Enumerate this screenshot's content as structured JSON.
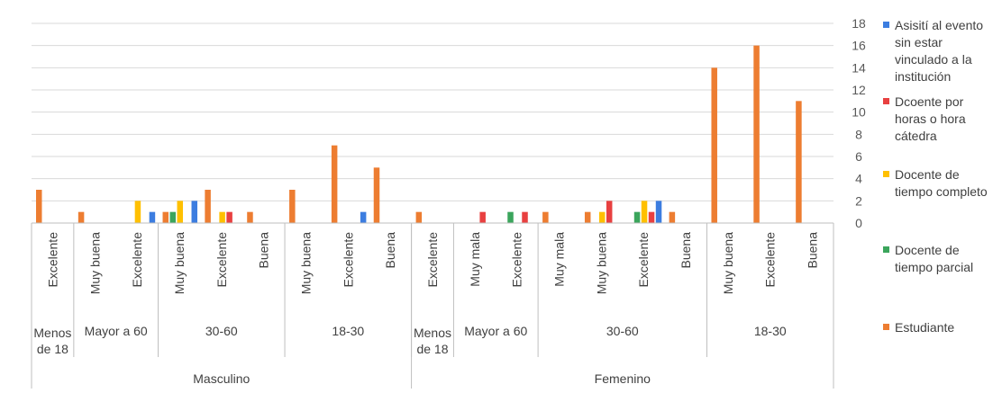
{
  "chart_data": {
    "type": "bar",
    "ylim": [
      0,
      18
    ],
    "y_ticks": [
      "0",
      "2",
      "4",
      "6",
      "8",
      "10",
      "12",
      "14",
      "16",
      "18"
    ],
    "y_axis_side": "right",
    "grid": true,
    "legend_position": "right",
    "categories": [
      "Excelente",
      "Muy buena",
      "Excelente",
      "Muy buena",
      "Excelente",
      "Buena",
      "Muy buena",
      "Excelente",
      "Buena",
      "Excelente",
      "Muy mala",
      "Excelente",
      "Muy mala",
      "Muy buena",
      "Excelente",
      "Buena",
      "Muy buena",
      "Excelente",
      "Buena"
    ],
    "age_groups": [
      {
        "label_lines": [
          "Menos",
          "de 18"
        ],
        "span": 1
      },
      {
        "label_lines": [
          "Mayor a 60"
        ],
        "span": 2
      },
      {
        "label_lines": [
          "30-60"
        ],
        "span": 3
      },
      {
        "label_lines": [
          "18-30"
        ],
        "span": 3
      },
      {
        "label_lines": [
          "Menos",
          "de 18"
        ],
        "span": 1
      },
      {
        "label_lines": [
          "Mayor a 60"
        ],
        "span": 2
      },
      {
        "label_lines": [
          "30-60"
        ],
        "span": 4
      },
      {
        "label_lines": [
          "18-30"
        ],
        "span": 3
      }
    ],
    "sex_groups": [
      {
        "label": "Masculino",
        "span": 9
      },
      {
        "label": "Femenino",
        "span": 10
      }
    ],
    "series": [
      {
        "name": "Estudiante",
        "color": "#ED7D31",
        "values": [
          3,
          1,
          0,
          1,
          3,
          1,
          3,
          7,
          5,
          1,
          0,
          0,
          1,
          1,
          0,
          1,
          14,
          16,
          11
        ]
      },
      {
        "name": "Docente de tiempo parcial",
        "color": "#3BA55C",
        "values": [
          0,
          0,
          0,
          1,
          0,
          0,
          0,
          0,
          0,
          0,
          0,
          1,
          0,
          0,
          1,
          0,
          0,
          0,
          0
        ]
      },
      {
        "name": "Docente de tiempo completo",
        "color": "#FFC000",
        "values": [
          0,
          0,
          2,
          2,
          1,
          0,
          0,
          0,
          0,
          0,
          0,
          0,
          0,
          1,
          2,
          0,
          0,
          0,
          0
        ]
      },
      {
        "name": "Dcoente por horas o hora cátedra",
        "color": "#E84040",
        "values": [
          0,
          0,
          0,
          0,
          1,
          0,
          0,
          0,
          0,
          0,
          1,
          1,
          0,
          2,
          1,
          0,
          0,
          0,
          0
        ]
      },
      {
        "name": "Asisití al evento sin estar vinculado a la institución",
        "color": "#3C7DE0",
        "values": [
          0,
          0,
          1,
          2,
          0,
          0,
          0,
          1,
          0,
          0,
          0,
          0,
          0,
          0,
          2,
          0,
          0,
          0,
          0
        ]
      }
    ],
    "legend": [
      {
        "series": 4,
        "lines": [
          "Asisití al evento",
          "sin estar",
          "vinculado a la",
          "institución"
        ]
      },
      {
        "series": 3,
        "lines": [
          "Dcoente por",
          "horas o hora",
          "cátedra"
        ]
      },
      {
        "series": 2,
        "lines": [
          "Docente de",
          "tiempo completo"
        ]
      },
      {
        "series": 1,
        "lines": [
          "Docente de",
          "tiempo parcial"
        ]
      },
      {
        "series": 0,
        "lines": [
          "Estudiante"
        ]
      }
    ]
  }
}
